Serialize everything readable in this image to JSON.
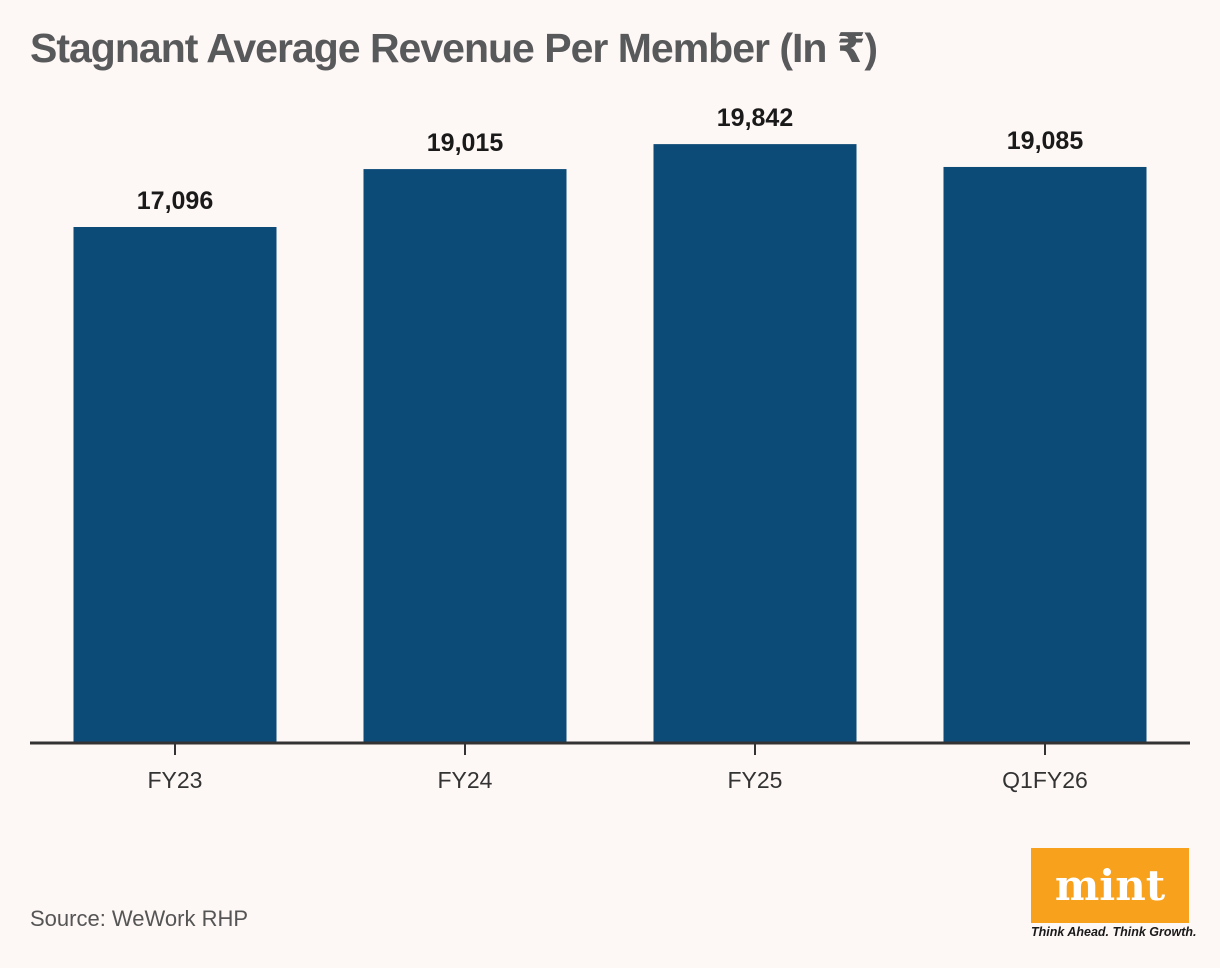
{
  "chart_data": {
    "type": "bar",
    "title": "Stagnant Average Revenue Per Member (In ₹)",
    "categories": [
      "FY23",
      "FY24",
      "FY25",
      "Q1FY26"
    ],
    "values": [
      17096,
      19015,
      19842,
      19085
    ],
    "value_labels": [
      "17,096",
      "19,015",
      "19,842",
      "19,085"
    ],
    "xlabel": "",
    "ylabel": "",
    "ylim": [
      0,
      22000
    ],
    "grid": false,
    "legend": "none",
    "bar_color": "#0c4a78"
  },
  "footer": {
    "source": "Source: WeWork RHP"
  },
  "brand": {
    "logo_text": "mint",
    "tagline": "Think Ahead. Think Growth.",
    "logo_color": "#f8a11c"
  }
}
